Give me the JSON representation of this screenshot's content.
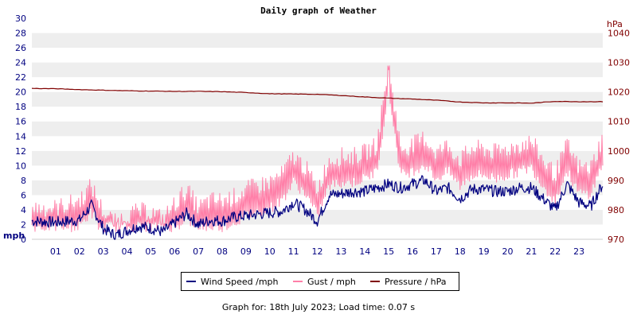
{
  "chart_data": {
    "type": "line",
    "title": "Daily graph of Weather",
    "left_axis": {
      "unit_label": "mph",
      "ylim": [
        0,
        30
      ],
      "ticks": [
        0,
        2,
        4,
        6,
        8,
        10,
        12,
        14,
        16,
        18,
        20,
        22,
        24,
        26,
        28,
        30
      ]
    },
    "right_axis": {
      "unit_label": "hPa",
      "ylim": [
        970,
        1045
      ],
      "ticks": [
        970,
        980,
        990,
        1000,
        1010,
        1020,
        1030,
        1040
      ]
    },
    "x_ticks": [
      "01",
      "02",
      "03",
      "04",
      "05",
      "06",
      "07",
      "08",
      "09",
      "10",
      "11",
      "12",
      "13",
      "14",
      "15",
      "16",
      "17",
      "18",
      "19",
      "20",
      "21",
      "22",
      "23"
    ],
    "xlim_hours": [
      0,
      24
    ],
    "grid": "horizontal bands",
    "legend_position": "bottom-center",
    "series": [
      {
        "name": "Wind Speed /mph",
        "color": "#000080",
        "axis": "left",
        "x_hours": [
          0,
          1,
          2,
          2.5,
          3,
          3.5,
          4,
          4.5,
          5,
          5.5,
          6,
          6.5,
          7,
          7.5,
          8,
          8.5,
          9,
          9.5,
          10,
          10.5,
          11,
          11.5,
          12,
          12.5,
          13,
          13.5,
          14,
          14.5,
          15,
          15.5,
          16,
          16.5,
          17,
          17.5,
          18,
          18.5,
          19,
          19.5,
          20,
          20.5,
          21,
          21.5,
          22,
          22.5,
          23,
          23.5,
          24
        ],
        "values": [
          2.5,
          2.3,
          2.6,
          4.6,
          1.5,
          0.5,
          1.2,
          1.8,
          1.5,
          1.0,
          2.2,
          3.5,
          2.0,
          2.6,
          2.5,
          3.0,
          3.2,
          3.4,
          3.6,
          3.8,
          5.0,
          4.0,
          2.5,
          6.0,
          6.2,
          6.5,
          6.5,
          7.0,
          7.5,
          7.0,
          7.5,
          8.0,
          6.5,
          7.0,
          5.5,
          6.8,
          6.8,
          6.5,
          6.5,
          7.0,
          7.0,
          5.5,
          4.0,
          7.5,
          5.0,
          4.5,
          7.5
        ]
      },
      {
        "name": "Gust / mph",
        "color": "#ff7fa8",
        "axis": "left",
        "x_hours": [
          0,
          1,
          2,
          2.5,
          3,
          3.5,
          4,
          4.5,
          5,
          5.5,
          6,
          6.5,
          7,
          7.5,
          8,
          8.5,
          9,
          9.5,
          10,
          10.5,
          11,
          11.5,
          12,
          12.5,
          13,
          13.5,
          14,
          14.5,
          15,
          15.5,
          16,
          16.5,
          17,
          17.5,
          18,
          18.5,
          19,
          19.5,
          20,
          20.5,
          21,
          21.5,
          22,
          22.5,
          23,
          23.5,
          24
        ],
        "values": [
          3.5,
          3.5,
          4.5,
          6.5,
          3.0,
          1.5,
          2.5,
          3.0,
          3.0,
          2.0,
          4.0,
          6.0,
          3.5,
          4.5,
          4.5,
          5.0,
          6.0,
          6.5,
          7.0,
          8.0,
          10.5,
          9.0,
          6.0,
          10.0,
          10.5,
          10.5,
          11.0,
          12.0,
          23.0,
          11.5,
          12.0,
          13.0,
          11.0,
          12.0,
          10.0,
          11.5,
          11.5,
          11.0,
          11.5,
          12.0,
          12.5,
          10.0,
          8.0,
          12.0,
          9.0,
          9.0,
          13.0
        ]
      },
      {
        "name": "Pressure / hPa",
        "color": "#800000",
        "axis": "right",
        "x_hours": [
          0,
          1,
          2,
          3,
          4,
          5,
          6,
          7,
          8,
          9,
          10,
          11,
          12,
          13,
          14,
          15,
          16,
          17,
          18,
          19,
          20,
          21,
          22,
          23,
          24
        ],
        "values": [
          1021.2,
          1021.1,
          1020.8,
          1020.6,
          1020.4,
          1020.3,
          1020.2,
          1020.2,
          1020.1,
          1019.8,
          1019.4,
          1019.3,
          1019.2,
          1018.8,
          1018.3,
          1017.9,
          1017.6,
          1017.2,
          1016.6,
          1016.3,
          1016.3,
          1016.2,
          1016.8,
          1016.7,
          1016.7
        ]
      }
    ],
    "footer": "Graph for: 18th July 2023; Load time: 0.07 s"
  }
}
